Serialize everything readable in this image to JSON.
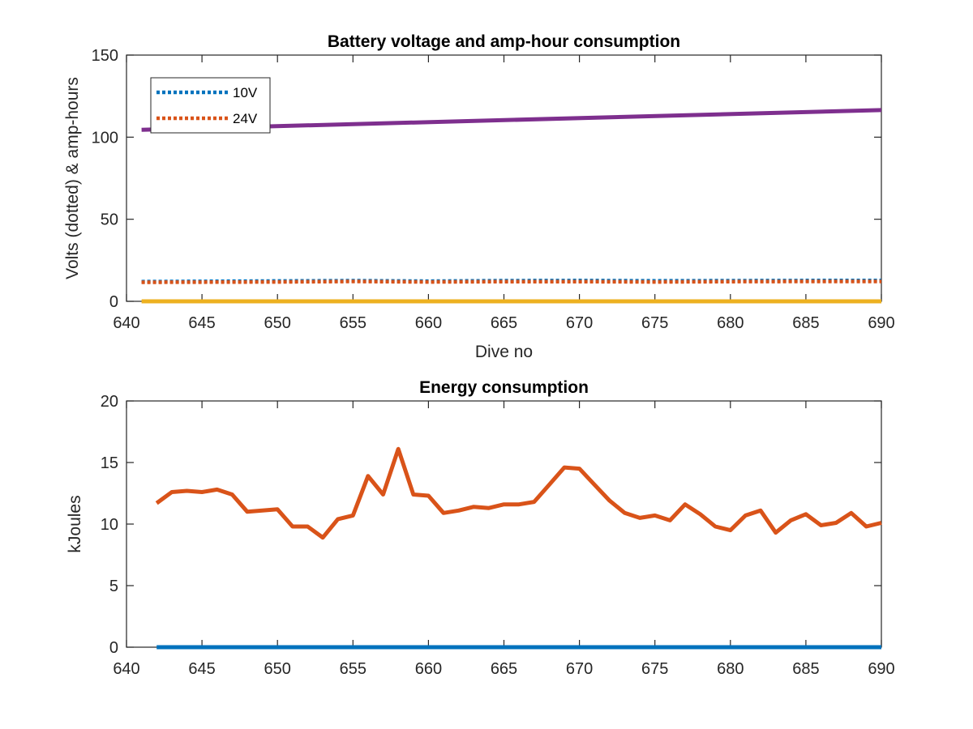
{
  "chart_data": [
    {
      "type": "line",
      "title": "Battery voltage and amp-hour consumption",
      "xlabel": "Dive no",
      "ylabel": "Volts (dotted) & amp-hours",
      "xlim": [
        640,
        690
      ],
      "ylim": [
        0,
        150
      ],
      "xticks": [
        "640",
        "645",
        "650",
        "655",
        "660",
        "665",
        "670",
        "675",
        "680",
        "685",
        "690"
      ],
      "yticks": [
        "0",
        "50",
        "100",
        "150"
      ],
      "grid": false,
      "legend_position": "top-left",
      "series": [
        {
          "name": "10V",
          "style": "dotted",
          "color": "#0072BD",
          "x": [
            641,
            650,
            655,
            660,
            665,
            670,
            675,
            680,
            685,
            690
          ],
          "y": [
            12,
            12.4,
            12.6,
            12.3,
            12.6,
            12.7,
            12.5,
            12.6,
            12.7,
            12.7
          ]
        },
        {
          "name": "24V",
          "style": "dotted",
          "color": "#D95319",
          "x": [
            641,
            650,
            655,
            660,
            665,
            670,
            675,
            680,
            685,
            690
          ],
          "y": [
            11.6,
            11.8,
            12.1,
            11.8,
            12.0,
            12.0,
            11.8,
            12.0,
            12.1,
            12.1
          ]
        },
        {
          "name": "",
          "style": "solid",
          "color": "#7E2F8E",
          "x": [
            641,
            690
          ],
          "y": [
            104.5,
            116.5
          ]
        },
        {
          "name": "",
          "style": "solid",
          "color": "#EDB120",
          "x": [
            641,
            690
          ],
          "y": [
            0,
            0
          ]
        }
      ]
    },
    {
      "type": "line",
      "title": "Energy consumption",
      "xlabel": "",
      "ylabel": "kJoules",
      "xlim": [
        640,
        690
      ],
      "ylim": [
        0,
        20
      ],
      "xticks": [
        "640",
        "645",
        "650",
        "655",
        "660",
        "665",
        "670",
        "675",
        "680",
        "685",
        "690"
      ],
      "yticks": [
        "0",
        "5",
        "10",
        "15",
        "20"
      ],
      "grid": false,
      "series": [
        {
          "name": "",
          "style": "solid",
          "color": "#0072BD",
          "x": [
            642,
            690
          ],
          "y": [
            0,
            0
          ]
        },
        {
          "name": "",
          "style": "solid",
          "color": "#D95319",
          "x": [
            642,
            643,
            644,
            645,
            646,
            647,
            648,
            649,
            650,
            651,
            652,
            653,
            654,
            655,
            656,
            657,
            658,
            659,
            660,
            661,
            662,
            663,
            664,
            665,
            666,
            667,
            668,
            669,
            670,
            671,
            672,
            673,
            674,
            675,
            676,
            677,
            678,
            679,
            680,
            681,
            682,
            683,
            684,
            685,
            686,
            687,
            688,
            689,
            690
          ],
          "y": [
            11.7,
            12.6,
            12.7,
            12.6,
            12.8,
            12.4,
            11.0,
            11.1,
            11.2,
            9.8,
            9.8,
            8.9,
            10.4,
            10.7,
            13.9,
            12.4,
            16.1,
            12.4,
            12.3,
            10.9,
            11.1,
            11.4,
            11.3,
            11.6,
            11.6,
            11.8,
            13.2,
            14.6,
            14.5,
            13.2,
            11.9,
            10.9,
            10.5,
            10.7,
            10.3,
            11.6,
            10.8,
            9.8,
            9.5,
            10.7,
            11.1,
            9.3,
            10.3,
            10.8,
            9.9,
            10.1,
            10.9,
            9.8,
            10.1
          ]
        }
      ]
    }
  ]
}
